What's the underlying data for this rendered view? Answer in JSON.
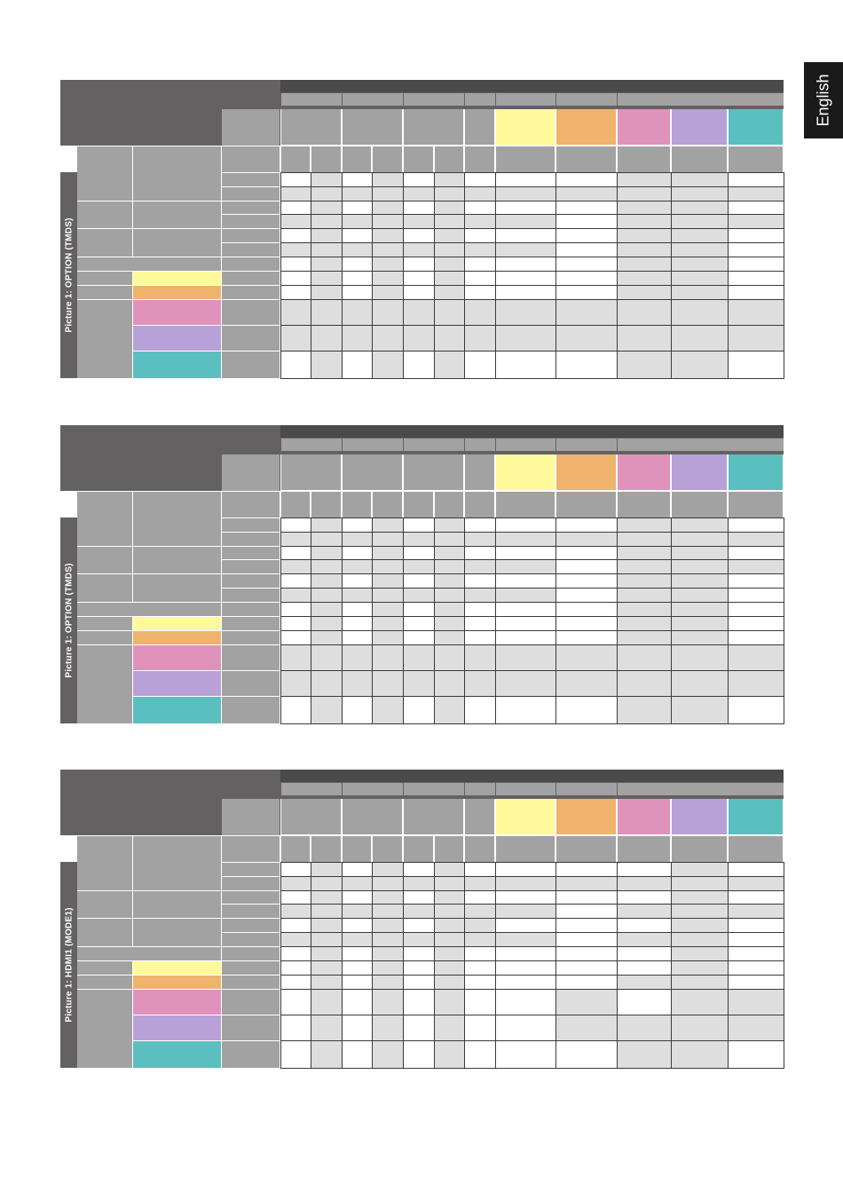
{
  "sidebar_tab": {
    "label": "English"
  },
  "colors": {
    "dark": "#636162",
    "mid": "#a3a2a3",
    "darker": "#4b4a4b",
    "light": "#dedede",
    "white": "#ffffff",
    "yellow": "#fef99a",
    "orange": "#efb36e",
    "pink": "#df93bb",
    "lavender": "#b8a1d6",
    "teal": "#5bbfbf"
  },
  "tables": [
    {
      "label": "Picture 1: OPTION (TMDS)",
      "row_pattern": [
        [
          "W",
          "L",
          "W",
          "L",
          "W",
          "L",
          "W",
          "W",
          "W",
          "L",
          "L",
          "W"
        ],
        [
          "L",
          "L",
          "L",
          "L",
          "L",
          "L",
          "L",
          "L",
          "L",
          "L",
          "L",
          "L"
        ],
        [
          "W",
          "L",
          "W",
          "L",
          "W",
          "L",
          "W",
          "W",
          "W",
          "L",
          "L",
          "W"
        ],
        [
          "L",
          "L",
          "L",
          "L",
          "L",
          "L",
          "L",
          "L",
          "W",
          "L",
          "L",
          "L"
        ],
        [
          "W",
          "L",
          "W",
          "L",
          "W",
          "L",
          "W",
          "W",
          "W",
          "L",
          "L",
          "W"
        ],
        [
          "L",
          "L",
          "L",
          "L",
          "L",
          "L",
          "L",
          "L",
          "W",
          "L",
          "L",
          "W"
        ],
        [
          "W",
          "L",
          "W",
          "L",
          "W",
          "L",
          "W",
          "W",
          "W",
          "L",
          "L",
          "W"
        ],
        [
          "W",
          "L",
          "W",
          "L",
          "W",
          "L",
          "W",
          "W",
          "W",
          "L",
          "L",
          "W"
        ],
        [
          "W",
          "L",
          "W",
          "L",
          "W",
          "L",
          "W",
          "W",
          "W",
          "L",
          "L",
          "W"
        ],
        [
          "L",
          "L",
          "L",
          "L",
          "L",
          "L",
          "L",
          "L",
          "L",
          "L",
          "L",
          "L"
        ],
        [
          "L",
          "L",
          "L",
          "L",
          "L",
          "L",
          "L",
          "L",
          "L",
          "L",
          "L",
          "L"
        ],
        [
          "W",
          "L",
          "W",
          "L",
          "W",
          "L",
          "W",
          "W",
          "W",
          "L",
          "L",
          "W"
        ]
      ]
    },
    {
      "label": "Picture 1: OPTION (TMDS)",
      "row_pattern": [
        [
          "W",
          "L",
          "W",
          "L",
          "W",
          "L",
          "W",
          "W",
          "W",
          "L",
          "L",
          "W"
        ],
        [
          "L",
          "L",
          "L",
          "L",
          "L",
          "L",
          "L",
          "L",
          "L",
          "L",
          "L",
          "L"
        ],
        [
          "W",
          "L",
          "W",
          "L",
          "W",
          "L",
          "W",
          "W",
          "W",
          "L",
          "L",
          "W"
        ],
        [
          "L",
          "L",
          "L",
          "L",
          "L",
          "L",
          "L",
          "L",
          "W",
          "L",
          "L",
          "L"
        ],
        [
          "W",
          "L",
          "W",
          "L",
          "W",
          "L",
          "W",
          "W",
          "W",
          "L",
          "L",
          "W"
        ],
        [
          "L",
          "L",
          "L",
          "L",
          "L",
          "L",
          "L",
          "L",
          "W",
          "L",
          "L",
          "W"
        ],
        [
          "W",
          "L",
          "W",
          "L",
          "W",
          "L",
          "W",
          "W",
          "W",
          "L",
          "L",
          "W"
        ],
        [
          "W",
          "L",
          "W",
          "L",
          "W",
          "L",
          "W",
          "W",
          "W",
          "L",
          "L",
          "W"
        ],
        [
          "W",
          "L",
          "W",
          "L",
          "W",
          "L",
          "W",
          "W",
          "W",
          "L",
          "L",
          "W"
        ],
        [
          "L",
          "L",
          "L",
          "L",
          "L",
          "L",
          "L",
          "L",
          "L",
          "L",
          "L",
          "L"
        ],
        [
          "L",
          "L",
          "L",
          "L",
          "L",
          "L",
          "L",
          "L",
          "L",
          "L",
          "L",
          "L"
        ],
        [
          "W",
          "L",
          "W",
          "L",
          "W",
          "L",
          "W",
          "W",
          "W",
          "L",
          "L",
          "W"
        ]
      ]
    },
    {
      "label": "Picture 1: HDMI1 (MODE1)",
      "row_pattern": [
        [
          "W",
          "L",
          "W",
          "L",
          "W",
          "L",
          "W",
          "W",
          "W",
          "W",
          "L",
          "W"
        ],
        [
          "L",
          "L",
          "L",
          "L",
          "L",
          "L",
          "L",
          "L",
          "L",
          "L",
          "L",
          "L"
        ],
        [
          "W",
          "L",
          "W",
          "L",
          "W",
          "L",
          "W",
          "W",
          "W",
          "W",
          "L",
          "W"
        ],
        [
          "L",
          "L",
          "L",
          "L",
          "L",
          "L",
          "L",
          "L",
          "W",
          "L",
          "L",
          "L"
        ],
        [
          "W",
          "L",
          "W",
          "L",
          "W",
          "L",
          "L",
          "W",
          "W",
          "W",
          "L",
          "W"
        ],
        [
          "L",
          "L",
          "L",
          "L",
          "L",
          "L",
          "L",
          "L",
          "W",
          "L",
          "L",
          "W"
        ],
        [
          "W",
          "L",
          "W",
          "L",
          "W",
          "L",
          "W",
          "W",
          "W",
          "W",
          "L",
          "W"
        ],
        [
          "W",
          "L",
          "W",
          "L",
          "W",
          "L",
          "W",
          "W",
          "W",
          "W",
          "L",
          "W"
        ],
        [
          "W",
          "L",
          "W",
          "L",
          "W",
          "L",
          "W",
          "W",
          "W",
          "L",
          "L",
          "W"
        ],
        [
          "W",
          "L",
          "W",
          "L",
          "W",
          "L",
          "W",
          "W",
          "L",
          "W",
          "L",
          "L"
        ],
        [
          "W",
          "L",
          "W",
          "L",
          "W",
          "L",
          "W",
          "W",
          "L",
          "L",
          "L",
          "L"
        ],
        [
          "W",
          "L",
          "W",
          "L",
          "W",
          "L",
          "W",
          "W",
          "W",
          "L",
          "L",
          "W"
        ]
      ]
    }
  ]
}
